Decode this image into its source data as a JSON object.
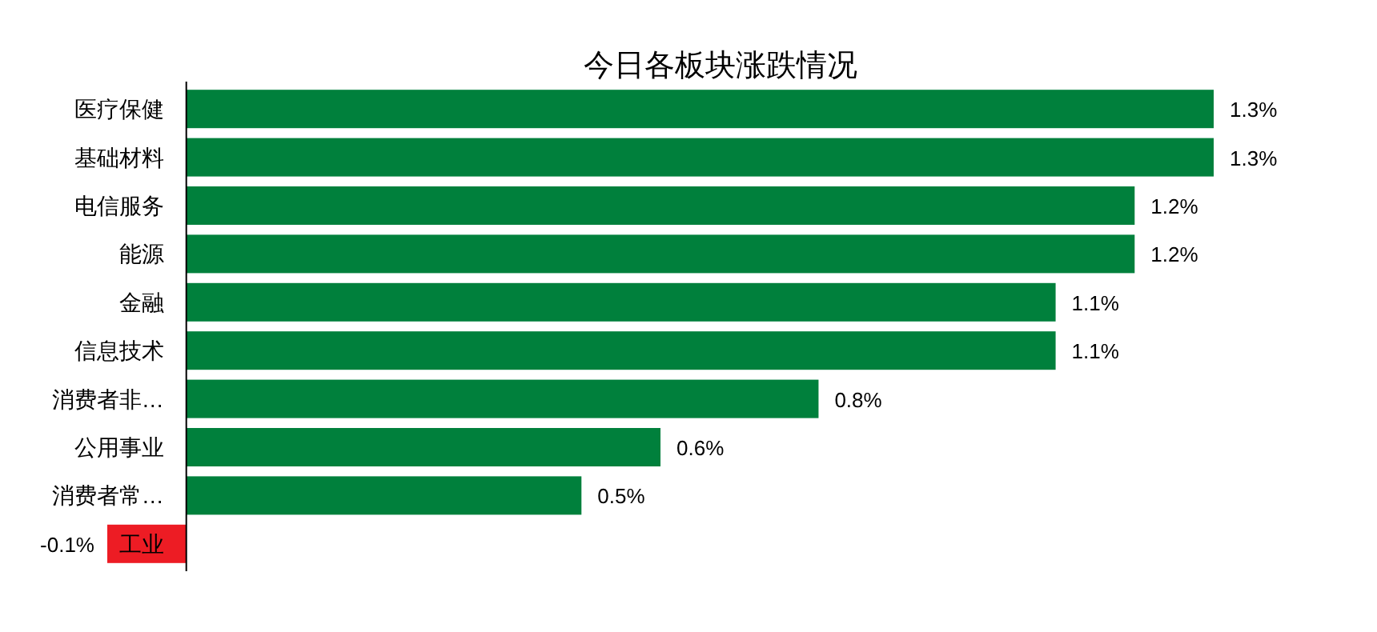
{
  "chart_data": {
    "type": "bar",
    "orientation": "horizontal",
    "title": "今日各板块涨跌情况",
    "categories": [
      "医疗保健",
      "基础材料",
      "电信服务",
      "能源",
      "金融",
      "信息技术",
      "消费者非…",
      "公用事业",
      "消费者常…",
      "工业"
    ],
    "values": [
      1.3,
      1.3,
      1.2,
      1.2,
      1.1,
      1.1,
      0.8,
      0.6,
      0.5,
      -0.1
    ],
    "colors": [
      "#00803c",
      "#00803c",
      "#00803c",
      "#00803c",
      "#00803c",
      "#00803c",
      "#00803c",
      "#00803c",
      "#00803c",
      "#ed1c24"
    ],
    "value_labels": [
      "1.3%",
      "1.3%",
      "1.2%",
      "1.2%",
      "1.1%",
      "1.1%",
      "0.8%",
      "0.6%",
      "0.5%",
      "-0.1%"
    ]
  }
}
